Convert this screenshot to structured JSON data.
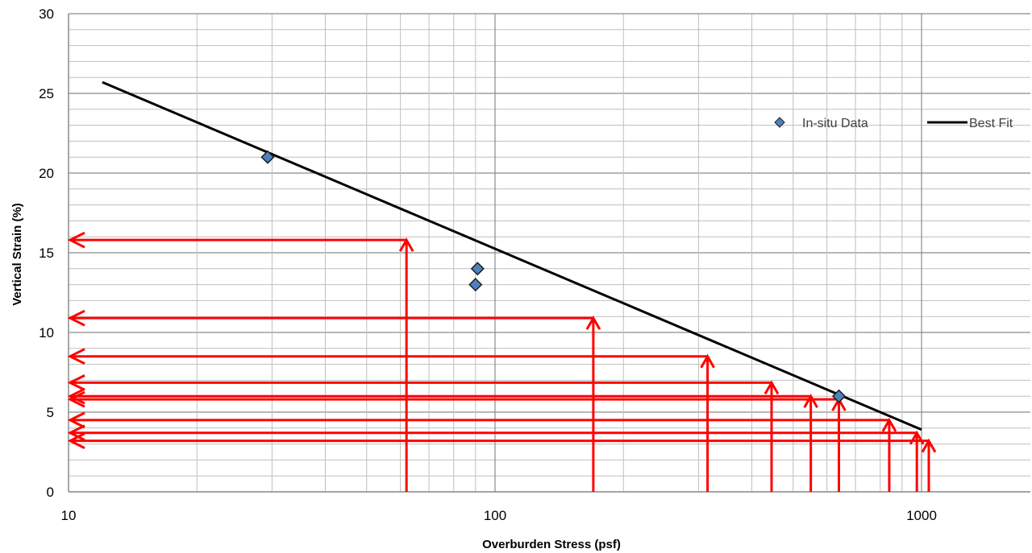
{
  "chart_data": {
    "type": "scatter",
    "title": "",
    "xlabel": "Overburden Stress (psf)",
    "ylabel": "Vertical Strain (%)",
    "x_scale": "log",
    "xlim": [
      10,
      2800
    ],
    "ylim": [
      0,
      30
    ],
    "x_tick_labels": [
      "10",
      "100",
      "1000"
    ],
    "y_tick_labels": [
      "0",
      "5",
      "10",
      "15",
      "20",
      "25",
      "30"
    ],
    "grid": true,
    "legend_position": "top-right",
    "series": [
      {
        "name": "In-situ Data",
        "kind": "scatter",
        "marker": "diamond",
        "color": "#4f81bd",
        "points": [
          [
            29.3,
            21
          ],
          [
            91,
            14
          ],
          [
            90,
            13
          ],
          [
            640,
            6
          ]
        ]
      },
      {
        "name": "Best Fit",
        "kind": "line",
        "color": "#000000",
        "points": [
          [
            12,
            25.7
          ],
          [
            1000,
            3.9
          ]
        ]
      }
    ],
    "annotations": {
      "color": "#ff0000",
      "description_points": [
        [
          62,
          15.8
        ],
        [
          170,
          10.9
        ],
        [
          315,
          8.5
        ],
        [
          445,
          6.85
        ],
        [
          550,
          6.0
        ],
        [
          640,
          5.8
        ],
        [
          840,
          4.5
        ],
        [
          975,
          3.7
        ],
        [
          1040,
          3.2
        ]
      ]
    }
  }
}
